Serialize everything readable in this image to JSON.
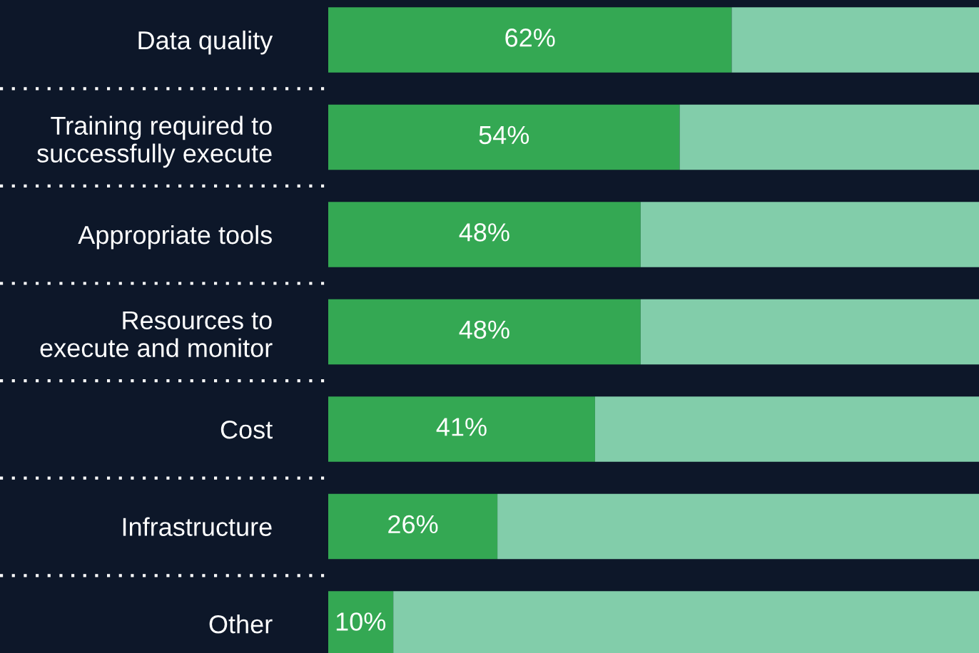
{
  "chart_data": {
    "type": "bar",
    "orientation": "horizontal",
    "stacked": true,
    "categories": [
      "Data quality",
      "Training required to\nsuccessfully execute",
      "Appropriate tools",
      "Resources to\nexecute and monitor",
      "Cost",
      "Infrastructure",
      "Other"
    ],
    "series": [
      {
        "color": "#34a853",
        "values": [
          62,
          54,
          48,
          48,
          41,
          26,
          10
        ],
        "value_labels": [
          "62%",
          "54%",
          "48%",
          "48%",
          "41%",
          "26%",
          "10%"
        ]
      },
      {
        "color": "#82cdaa",
        "values": [
          38,
          46,
          52,
          52,
          59,
          74,
          90
        ]
      }
    ],
    "xlim": [
      0,
      100
    ],
    "tick_labels": "y",
    "grid": false,
    "legend": false
  }
}
